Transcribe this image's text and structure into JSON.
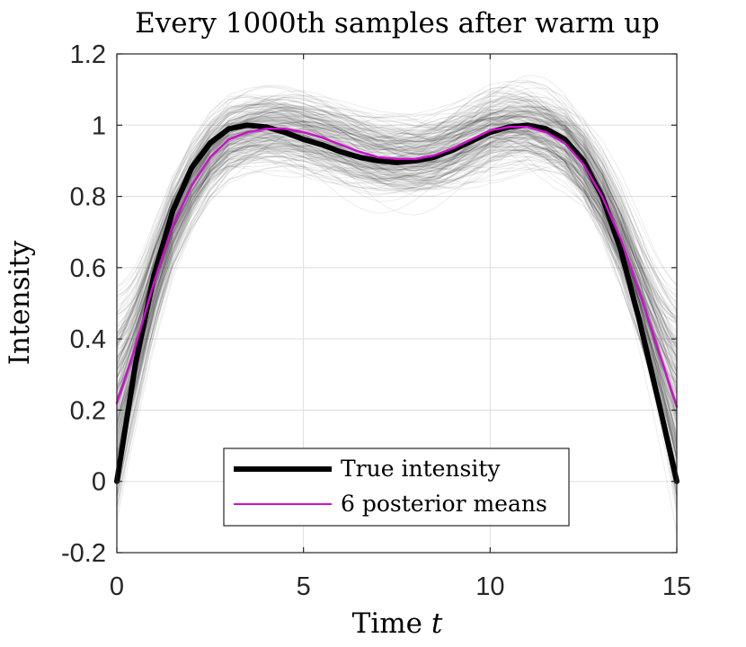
{
  "chart_data": {
    "type": "line",
    "title": "Every 1000th samples after warm up",
    "xlabel": "Time",
    "xlabel_var": "t",
    "ylabel": "Intensity",
    "xlim": [
      0,
      15
    ],
    "ylim": [
      -0.2,
      1.2
    ],
    "xticks": [
      0,
      5,
      10,
      15
    ],
    "yticks": [
      -0.2,
      0,
      0.2,
      0.4,
      0.6,
      0.8,
      1,
      1.2
    ],
    "xtick_labels": [
      "0",
      "5",
      "10",
      "15"
    ],
    "ytick_labels": [
      "-0.2",
      "0",
      "0.2",
      "0.4",
      "0.6",
      "0.8",
      "1",
      "1.2"
    ],
    "grid": true,
    "legend_position": "bottom-center",
    "series": [
      {
        "name": "True intensity",
        "color": "#000000",
        "x": [
          0,
          0.5,
          1,
          1.5,
          2,
          2.5,
          3,
          3.5,
          4,
          4.5,
          5,
          5.5,
          6,
          6.5,
          7,
          7.5,
          8,
          8.5,
          9,
          9.5,
          10,
          10.5,
          11,
          11.5,
          12,
          12.5,
          13,
          13.5,
          14,
          14.5,
          15
        ],
        "y": [
          0,
          0.33,
          0.58,
          0.76,
          0.88,
          0.95,
          0.99,
          1.0,
          0.995,
          0.98,
          0.96,
          0.945,
          0.925,
          0.91,
          0.9,
          0.895,
          0.9,
          0.91,
          0.93,
          0.955,
          0.98,
          0.995,
          1.0,
          0.99,
          0.96,
          0.9,
          0.8,
          0.65,
          0.45,
          0.23,
          0
        ]
      },
      {
        "name": "6 posterior means",
        "color": "#cc11cc",
        "x": [
          0,
          0.5,
          1,
          1.5,
          2,
          2.5,
          3,
          3.5,
          4,
          4.5,
          5,
          5.5,
          6,
          6.5,
          7,
          7.5,
          8,
          8.5,
          9,
          9.5,
          10,
          10.5,
          11,
          11.5,
          12,
          12.5,
          13,
          13.5,
          14,
          14.5,
          15
        ],
        "y": [
          0.22,
          0.38,
          0.56,
          0.72,
          0.83,
          0.91,
          0.96,
          0.98,
          0.99,
          0.99,
          0.98,
          0.965,
          0.945,
          0.925,
          0.91,
          0.905,
          0.905,
          0.915,
          0.935,
          0.96,
          0.985,
          0.995,
          0.995,
          0.98,
          0.95,
          0.89,
          0.8,
          0.68,
          0.53,
          0.37,
          0.21
        ]
      }
    ],
    "background_samples": {
      "description_color": "#000000",
      "count": 220,
      "opacity": 0.07
    }
  },
  "legend": {
    "entries": [
      {
        "label": "True intensity",
        "color": "#000000"
      },
      {
        "label": "6 posterior means",
        "color": "#cc11cc"
      }
    ]
  }
}
